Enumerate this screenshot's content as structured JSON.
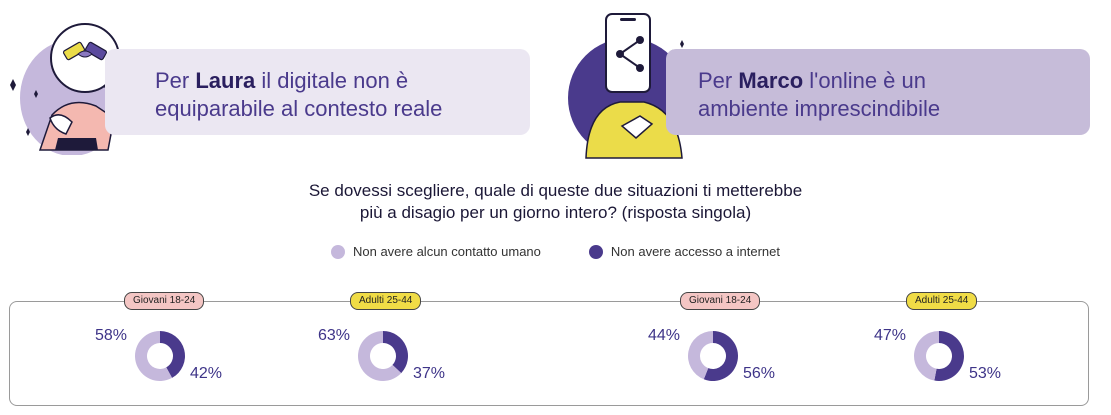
{
  "colors": {
    "accent_light": "#c5b8dc",
    "accent_dark": "#4a3a8c",
    "tag_giovani": "#f4c6c4",
    "tag_adulti": "#f0dc46",
    "illus_yellow": "#ebdc49",
    "illus_pink": "#f4b8b0"
  },
  "banners": {
    "left": {
      "prefix": "Per ",
      "name": "Laura",
      "line1_rest": " il digitale non è",
      "line2": "equiparabile al contesto reale"
    },
    "right": {
      "prefix": "Per ",
      "name": "Marco",
      "line1_rest": " l'online è un",
      "line2": "ambiente imprescindibile"
    }
  },
  "question": {
    "line1": "Se dovessi scegliere, quale di queste due situazioni ti metterebbe",
    "line2": "più a disagio per un giorno intero? (risposta singola)"
  },
  "legend": [
    {
      "label": "Non avere alcun contatto umano",
      "color": "#c5b8dc"
    },
    {
      "label": "Non avere accesso a internet",
      "color": "#4a3a8c"
    }
  ],
  "chart_data": [
    {
      "type": "pie",
      "group": "Giovani 18-24",
      "categories": [
        "Non avere alcun contatto umano",
        "Non avere accesso a internet"
      ],
      "values": [
        58,
        42
      ],
      "labels": [
        "58%",
        "42%"
      ]
    },
    {
      "type": "pie",
      "group": "Adulti 25-44",
      "categories": [
        "Non avere alcun contatto umano",
        "Non avere accesso a internet"
      ],
      "values": [
        63,
        37
      ],
      "labels": [
        "63%",
        "37%"
      ]
    },
    {
      "type": "pie",
      "group": "Giovani 18-24",
      "categories": [
        "Non avere alcun contatto umano",
        "Non avere accesso a internet"
      ],
      "values": [
        44,
        56
      ],
      "labels": [
        "44%",
        "56%"
      ]
    },
    {
      "type": "pie",
      "group": "Adulti 25-44",
      "categories": [
        "Non avere alcun contatto umano",
        "Non avere accesso a internet"
      ],
      "values": [
        47,
        53
      ],
      "labels": [
        "47%",
        "53%"
      ]
    }
  ]
}
